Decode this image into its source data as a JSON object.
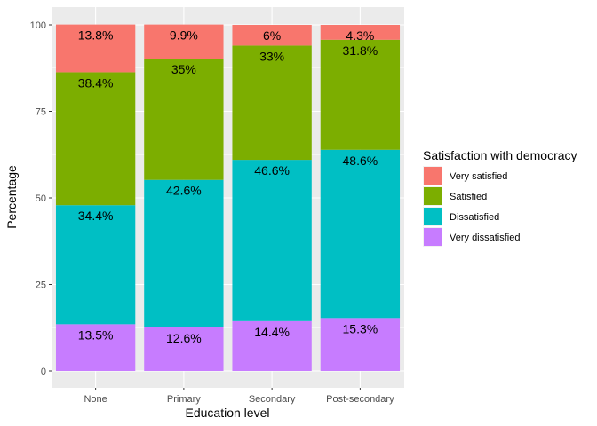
{
  "chart_data": {
    "type": "bar",
    "stacked": true,
    "title": "",
    "xlabel": "Education level",
    "ylabel": "Percentage",
    "ylim": [
      0,
      100
    ],
    "yticks": [
      "0",
      "25",
      "50",
      "75",
      "100"
    ],
    "categories": [
      "None",
      "Primary",
      "Secondary",
      "Post-secondary"
    ],
    "series": [
      {
        "name": "Very dissatisfied",
        "color": "#C77CFF",
        "values": [
          13.5,
          12.6,
          14.4,
          15.3
        ],
        "labels": [
          "13.5%",
          "12.6%",
          "14.4%",
          "15.3%"
        ]
      },
      {
        "name": "Dissatisfied",
        "color": "#00BFC4",
        "values": [
          34.4,
          42.6,
          46.6,
          48.6
        ],
        "labels": [
          "34.4%",
          "42.6%",
          "46.6%",
          "48.6%"
        ]
      },
      {
        "name": "Satisfied",
        "color": "#7CAE00",
        "values": [
          38.4,
          35,
          33,
          31.8
        ],
        "labels": [
          "38.4%",
          "35%",
          "33%",
          "31.8%"
        ]
      },
      {
        "name": "Very satisfied",
        "color": "#F8766D",
        "values": [
          13.8,
          9.9,
          6,
          4.3
        ],
        "labels": [
          "13.8%",
          "9.9%",
          "6%",
          "4.3%"
        ]
      }
    ],
    "legend": {
      "title": "Satisfaction with democracy",
      "position": "right",
      "items": [
        "Very satisfied",
        "Satisfied",
        "Dissatisfied",
        "Very dissatisfied"
      ]
    },
    "grid": true,
    "panel_background": "#EBEBEB"
  }
}
